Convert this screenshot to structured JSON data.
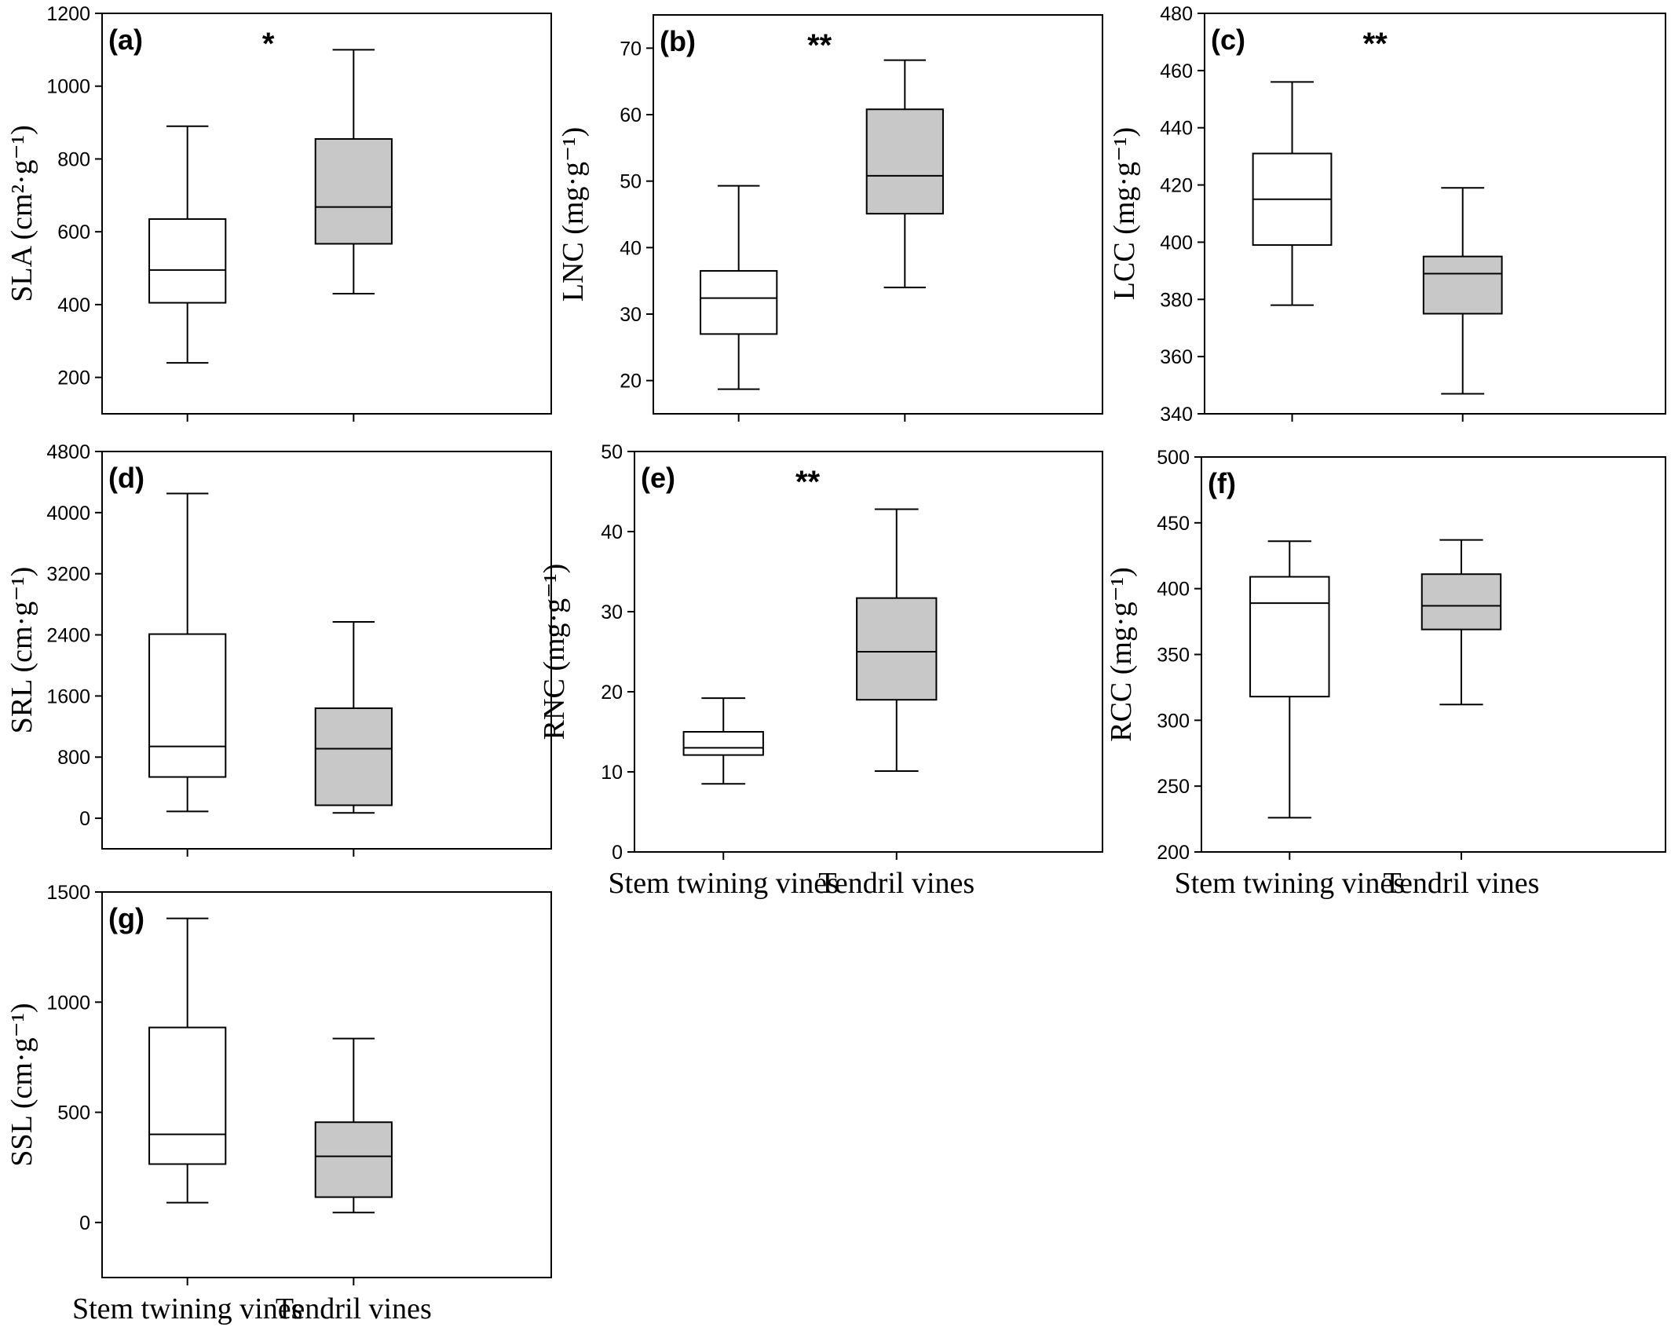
{
  "colors": {
    "stem": "#ffffff",
    "tendril": "#c8c8c8",
    "axis": "#000000"
  },
  "chart_data": [
    {
      "type": "box",
      "panel_label": "(a)",
      "significance": "*",
      "ylabel": "SLA (cm²·g⁻¹)",
      "ylim": [
        100,
        1200
      ],
      "yticks": [
        200,
        400,
        600,
        800,
        1000,
        1200
      ],
      "categories": [
        "Stem twining vines",
        "Tendril vines"
      ],
      "show_xlabels": false,
      "series": [
        {
          "group": "Stem twining vines",
          "min": 240,
          "q1": 405,
          "median": 495,
          "q3": 635,
          "max": 890
        },
        {
          "group": "Tendril vines",
          "min": 430,
          "q1": 567,
          "median": 668,
          "q3": 855,
          "max": 1100
        }
      ]
    },
    {
      "type": "box",
      "panel_label": "(b)",
      "significance": "**",
      "ylabel": "LNC (mg·g⁻¹)",
      "ylim": [
        15,
        75
      ],
      "yticks": [
        20,
        30,
        40,
        50,
        60,
        70
      ],
      "categories": [
        "Stem twining vines",
        "Tendril vines"
      ],
      "show_xlabels": false,
      "series": [
        {
          "group": "Stem twining vines",
          "min": 18.7,
          "q1": 27,
          "median": 32.4,
          "q3": 36.5,
          "max": 49.3
        },
        {
          "group": "Tendril vines",
          "min": 34,
          "q1": 45.1,
          "median": 50.8,
          "q3": 60.8,
          "max": 68.2
        }
      ]
    },
    {
      "type": "box",
      "panel_label": "(c)",
      "significance": "**",
      "ylabel": "LCC (mg·g⁻¹)",
      "ylim": [
        340,
        480
      ],
      "yticks": [
        340,
        360,
        380,
        400,
        420,
        440,
        460,
        480
      ],
      "categories": [
        "Stem twining vines",
        "Tendril vines"
      ],
      "show_xlabels": false,
      "series": [
        {
          "group": "Stem twining vines",
          "min": 378,
          "q1": 399,
          "median": 415,
          "q3": 431,
          "max": 456
        },
        {
          "group": "Tendril vines",
          "min": 347,
          "q1": 375,
          "median": 389,
          "q3": 395,
          "max": 419
        }
      ]
    },
    {
      "type": "box",
      "panel_label": "(d)",
      "significance": "",
      "ylabel": "SRL (cm·g⁻¹)",
      "ylim": [
        -400,
        4800
      ],
      "yticks": [
        0,
        800,
        1600,
        2400,
        3200,
        4000,
        4800
      ],
      "categories": [
        "Stem twining vines",
        "Tendril vines"
      ],
      "show_xlabels": false,
      "series": [
        {
          "group": "Stem twining vines",
          "min": 90,
          "q1": 540,
          "median": 940,
          "q3": 2410,
          "max": 4250
        },
        {
          "group": "Tendril vines",
          "min": 70,
          "q1": 170,
          "median": 910,
          "q3": 1440,
          "max": 2570
        }
      ]
    },
    {
      "type": "box",
      "panel_label": "(e)",
      "significance": "**",
      "ylabel": "RNC (mg·g⁻¹)",
      "ylim": [
        0,
        50
      ],
      "yticks": [
        0,
        10,
        20,
        30,
        40,
        50
      ],
      "categories": [
        "Stem twining vines",
        "Tendril vines"
      ],
      "show_xlabels": true,
      "series": [
        {
          "group": "Stem twining vines",
          "min": 8.5,
          "q1": 12.1,
          "median": 13,
          "q3": 15,
          "max": 19.2
        },
        {
          "group": "Tendril vines",
          "min": 10.1,
          "q1": 19,
          "median": 25,
          "q3": 31.7,
          "max": 42.8
        }
      ]
    },
    {
      "type": "box",
      "panel_label": "(f)",
      "significance": "",
      "ylabel": "RCC (mg·g⁻¹)",
      "ylim": [
        200,
        500
      ],
      "yticks": [
        200,
        250,
        300,
        350,
        400,
        450,
        500
      ],
      "categories": [
        "Stem twining vines",
        "Tendril vines"
      ],
      "show_xlabels": true,
      "series": [
        {
          "group": "Stem twining vines",
          "min": 226,
          "q1": 318,
          "median": 389,
          "q3": 409,
          "max": 436
        },
        {
          "group": "Tendril vines",
          "min": 312,
          "q1": 369,
          "median": 387,
          "q3": 411,
          "max": 437
        }
      ]
    },
    {
      "type": "box",
      "panel_label": "(g)",
      "significance": "",
      "ylabel": "SSL (cm·g⁻¹)",
      "ylim": [
        -250,
        1500
      ],
      "yticks": [
        0,
        500,
        1000,
        1500
      ],
      "categories": [
        "Stem twining vines",
        "Tendril vines"
      ],
      "show_xlabels": true,
      "series": [
        {
          "group": "Stem twining vines",
          "min": 90,
          "q1": 265,
          "median": 400,
          "q3": 885,
          "max": 1380
        },
        {
          "group": "Tendril vines",
          "min": 45,
          "q1": 115,
          "median": 300,
          "q3": 455,
          "max": 835
        }
      ]
    }
  ]
}
